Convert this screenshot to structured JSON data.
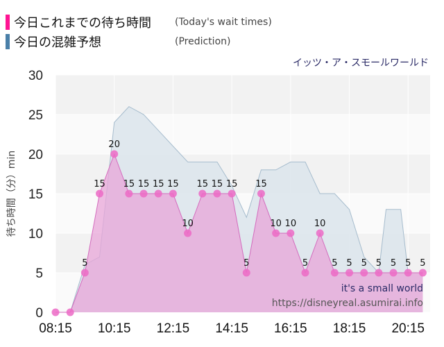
{
  "legend": [
    {
      "label": "今日これまでの待ち時間",
      "sublabel": "(Today's wait times)",
      "color": "#ff1493"
    },
    {
      "label": "今日の混雑予想",
      "sublabel": "(Prediction)",
      "color": "#4a7fa8"
    }
  ],
  "attraction_name": "イッツ・ア・スモールワールド",
  "attraction_name_en": "it's a small world",
  "source_url": "https://disneyreal.asumirai.info",
  "colors": {
    "actual_fill": "#e8a6d8",
    "actual_line": "#d36bbd",
    "actual_marker": "#ec6ac6",
    "prediction_fill": "#dde6ec",
    "prediction_line": "#a6bccd",
    "plot_band": "#f2f2f2",
    "grid": "#ffffff"
  },
  "chart_data": {
    "type": "area",
    "ylabel": "待ち時間（分）min",
    "ylim": [
      0,
      30
    ],
    "yticks": [
      0,
      5,
      10,
      15,
      20,
      25,
      30
    ],
    "xticks": [
      "08:15",
      "10:15",
      "12:15",
      "14:15",
      "16:15",
      "18:15",
      "20:15"
    ],
    "xlim": [
      "08:15",
      "21:00"
    ],
    "grid": true,
    "legend_position": "top-left",
    "series": [
      {
        "name": "今日これまでの待ち時間",
        "points": [
          {
            "x": "08:15",
            "y": 0
          },
          {
            "x": "08:45",
            "y": 0
          },
          {
            "x": "09:15",
            "y": 5
          },
          {
            "x": "09:45",
            "y": 15
          },
          {
            "x": "10:15",
            "y": 20
          },
          {
            "x": "10:45",
            "y": 15
          },
          {
            "x": "11:15",
            "y": 15
          },
          {
            "x": "11:45",
            "y": 15
          },
          {
            "x": "12:15",
            "y": 15
          },
          {
            "x": "12:45",
            "y": 10
          },
          {
            "x": "13:15",
            "y": 15
          },
          {
            "x": "13:45",
            "y": 15
          },
          {
            "x": "14:15",
            "y": 15
          },
          {
            "x": "14:45",
            "y": 5
          },
          {
            "x": "15:15",
            "y": 15
          },
          {
            "x": "15:45",
            "y": 10
          },
          {
            "x": "16:15",
            "y": 10
          },
          {
            "x": "16:45",
            "y": 5
          },
          {
            "x": "17:15",
            "y": 10
          },
          {
            "x": "17:45",
            "y": 5
          },
          {
            "x": "18:15",
            "y": 5
          },
          {
            "x": "18:45",
            "y": 5
          },
          {
            "x": "19:15",
            "y": 5
          },
          {
            "x": "19:45",
            "y": 5
          },
          {
            "x": "20:15",
            "y": 5
          },
          {
            "x": "20:45",
            "y": 5
          }
        ]
      },
      {
        "name": "今日の混雑予想",
        "points": [
          {
            "x": "08:45",
            "y": 0
          },
          {
            "x": "09:15",
            "y": 6
          },
          {
            "x": "09:45",
            "y": 7
          },
          {
            "x": "10:15",
            "y": 24
          },
          {
            "x": "10:45",
            "y": 26
          },
          {
            "x": "11:15",
            "y": 25
          },
          {
            "x": "11:45",
            "y": 23
          },
          {
            "x": "12:15",
            "y": 21
          },
          {
            "x": "12:45",
            "y": 19
          },
          {
            "x": "13:15",
            "y": 19
          },
          {
            "x": "13:45",
            "y": 19
          },
          {
            "x": "14:15",
            "y": 16
          },
          {
            "x": "14:45",
            "y": 12
          },
          {
            "x": "15:15",
            "y": 18
          },
          {
            "x": "15:45",
            "y": 18
          },
          {
            "x": "16:15",
            "y": 19
          },
          {
            "x": "16:45",
            "y": 19
          },
          {
            "x": "17:15",
            "y": 15
          },
          {
            "x": "17:45",
            "y": 15
          },
          {
            "x": "18:15",
            "y": 13
          },
          {
            "x": "18:45",
            "y": 7
          },
          {
            "x": "19:15",
            "y": 5
          },
          {
            "x": "19:30",
            "y": 13
          },
          {
            "x": "20:00",
            "y": 13
          },
          {
            "x": "20:15",
            "y": 5
          },
          {
            "x": "20:45",
            "y": 5
          }
        ]
      }
    ],
    "point_labels": [
      {
        "x": "09:15",
        "text": "5"
      },
      {
        "x": "09:45",
        "text": "15"
      },
      {
        "x": "10:15",
        "text": "20"
      },
      {
        "x": "10:45",
        "text": "15"
      },
      {
        "x": "11:15",
        "text": "15"
      },
      {
        "x": "11:45",
        "text": "15"
      },
      {
        "x": "12:15",
        "text": "15"
      },
      {
        "x": "12:45",
        "text": "10"
      },
      {
        "x": "13:15",
        "text": "15"
      },
      {
        "x": "13:45",
        "text": "15"
      },
      {
        "x": "14:15",
        "text": "15"
      },
      {
        "x": "14:45",
        "text": "5"
      },
      {
        "x": "15:15",
        "text": "15"
      },
      {
        "x": "15:45",
        "text": "10"
      },
      {
        "x": "16:15",
        "text": "10"
      },
      {
        "x": "16:45",
        "text": "5"
      },
      {
        "x": "17:15",
        "text": "10"
      },
      {
        "x": "17:45",
        "text": "5"
      },
      {
        "x": "18:15",
        "text": "5"
      },
      {
        "x": "18:45",
        "text": "5"
      },
      {
        "x": "19:15",
        "text": "5"
      },
      {
        "x": "19:45",
        "text": "5"
      },
      {
        "x": "20:15",
        "text": "5"
      },
      {
        "x": "20:45",
        "text": "5"
      }
    ]
  }
}
